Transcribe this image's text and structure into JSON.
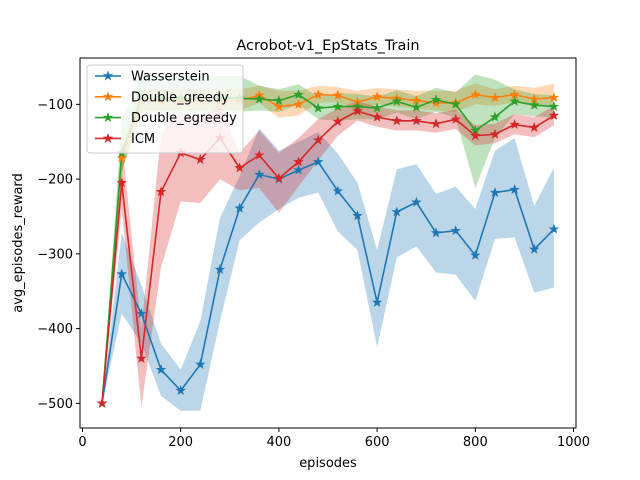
{
  "chart_data": {
    "type": "line",
    "title": "Acrobot-v1_EpStats_Train",
    "xlabel": "episodes",
    "ylabel": "avg_episodes_reward",
    "xlim": [
      -5,
      1005
    ],
    "ylim": [
      -533,
      -38
    ],
    "xticks": [
      0,
      200,
      400,
      600,
      800,
      1000
    ],
    "yticks": [
      -500,
      -400,
      -300,
      -200,
      -100
    ],
    "grid": false,
    "legend_position": "upper-left",
    "x": [
      40,
      80,
      120,
      160,
      200,
      240,
      280,
      320,
      360,
      400,
      440,
      480,
      520,
      560,
      600,
      640,
      680,
      720,
      760,
      800,
      840,
      880,
      920,
      960
    ],
    "series": [
      {
        "name": "Wasserstein",
        "color": "#1f77b4",
        "values": [
          -500,
          -327,
          -380,
          -455,
          -483,
          -448,
          -321,
          -239,
          -194,
          -200,
          -188,
          -177,
          -216,
          -249,
          -365,
          -244,
          -231,
          -272,
          -269,
          -302,
          -218,
          -214,
          -294,
          -267
        ],
        "band_low": [
          -500,
          -380,
          -420,
          -490,
          -510,
          -510,
          -390,
          -282,
          -258,
          -240,
          -225,
          -218,
          -270,
          -295,
          -425,
          -305,
          -290,
          -325,
          -328,
          -363,
          -280,
          -278,
          -352,
          -345
        ],
        "band_high": [
          -500,
          -272,
          -342,
          -420,
          -455,
          -390,
          -252,
          -196,
          -132,
          -162,
          -150,
          -137,
          -166,
          -205,
          -295,
          -187,
          -180,
          -220,
          -210,
          -240,
          -162,
          -145,
          -236,
          -185
        ]
      },
      {
        "name": "Double_greedy",
        "color": "#ff7f0e",
        "values": [
          -500,
          -172,
          -95,
          -95,
          -95,
          -95,
          -95,
          -95,
          -88,
          -103,
          -100,
          -87,
          -88,
          -97,
          -90,
          -92,
          -95,
          -98,
          -98,
          -87,
          -91,
          -87,
          -93,
          -91
        ],
        "band_low": [
          -500,
          -190,
          -110,
          -108,
          -108,
          -108,
          -108,
          -108,
          -98,
          -118,
          -115,
          -98,
          -97,
          -108,
          -100,
          -103,
          -106,
          -108,
          -110,
          -100,
          -102,
          -97,
          -103,
          -100
        ],
        "band_high": [
          -500,
          -160,
          -80,
          -80,
          -80,
          -80,
          -80,
          -80,
          -75,
          -82,
          -82,
          -75,
          -77,
          -82,
          -78,
          -80,
          -82,
          -82,
          -82,
          -72,
          -80,
          -75,
          -78,
          -72
        ]
      },
      {
        "name": "Double_egreedy",
        "color": "#2ca02c",
        "values": [
          -500,
          -165,
          -92,
          -92,
          -92,
          -92,
          -92,
          -92,
          -93,
          -95,
          -87,
          -105,
          -103,
          -103,
          -105,
          -96,
          -104,
          -94,
          -100,
          -135,
          -117,
          -96,
          -101,
          -103
        ],
        "band_low": [
          -500,
          -190,
          -110,
          -110,
          -110,
          -110,
          -110,
          -110,
          -108,
          -110,
          -100,
          -120,
          -122,
          -120,
          -120,
          -111,
          -120,
          -110,
          -118,
          -212,
          -145,
          -113,
          -116,
          -118
        ],
        "band_high": [
          -500,
          -120,
          -62,
          -62,
          -62,
          -62,
          -62,
          -62,
          -75,
          -80,
          -73,
          -90,
          -85,
          -86,
          -90,
          -81,
          -89,
          -78,
          -84,
          -60,
          -67,
          -80,
          -86,
          -88
        ]
      },
      {
        "name": "ICM",
        "color": "#d62728",
        "values": [
          -500,
          -205,
          -440,
          -217,
          -165,
          -174,
          -145,
          -185,
          -168,
          -199,
          -177,
          -148,
          -123,
          -109,
          -117,
          -122,
          -122,
          -126,
          -120,
          -142,
          -140,
          -127,
          -131,
          -115
        ],
        "band_low": [
          -500,
          -240,
          -505,
          -318,
          -230,
          -232,
          -200,
          -215,
          -212,
          -245,
          -210,
          -175,
          -142,
          -122,
          -130,
          -135,
          -135,
          -138,
          -133,
          -155,
          -152,
          -140,
          -144,
          -128
        ],
        "band_high": [
          -500,
          -150,
          -400,
          -140,
          -110,
          -120,
          -100,
          -165,
          -135,
          -165,
          -145,
          -120,
          -105,
          -96,
          -103,
          -108,
          -108,
          -112,
          -107,
          -128,
          -126,
          -113,
          -117,
          -102
        ]
      }
    ]
  }
}
